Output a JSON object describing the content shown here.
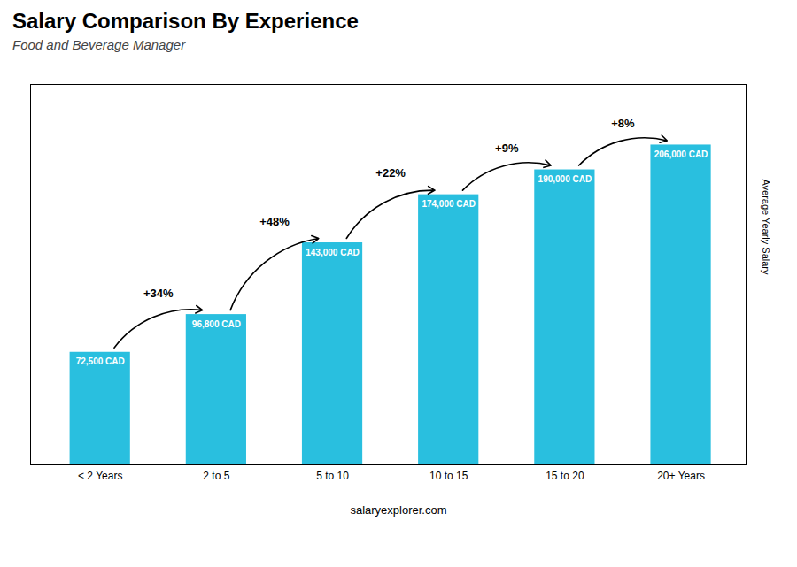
{
  "chart_data": {
    "type": "bar",
    "title": "Salary Comparison By Experience",
    "subtitle": "Food and Beverage Manager",
    "categories": [
      "< 2 Years",
      "2 to 5",
      "5 to 10",
      "10 to 15",
      "15 to 20",
      "20+ Years"
    ],
    "values": [
      72500,
      96800,
      143000,
      174000,
      190000,
      206000
    ],
    "value_labels": [
      "72,500 CAD",
      "96,800 CAD",
      "143,000 CAD",
      "174,000 CAD",
      "190,000 CAD",
      "206,000 CAD"
    ],
    "data_labels": true,
    "color": "#29bfdf",
    "ylabel": "Average Yearly Salary",
    "ylim": [
      0,
      245000
    ],
    "tick_labels": "x",
    "grid": false,
    "annotations": [
      {
        "text": "+34%",
        "from": "< 2 Years",
        "to": "2 to 5"
      },
      {
        "text": "+48%",
        "from": "2 to 5",
        "to": "5 to 10"
      },
      {
        "text": "+22%",
        "from": "5 to 10",
        "to": "10 to 15"
      },
      {
        "text": "+9%",
        "from": "10 to 15",
        "to": "15 to 20"
      },
      {
        "text": "+8%",
        "from": "15 to 20",
        "to": "20+ Years"
      }
    ],
    "caption": "salaryexplorer.com"
  }
}
